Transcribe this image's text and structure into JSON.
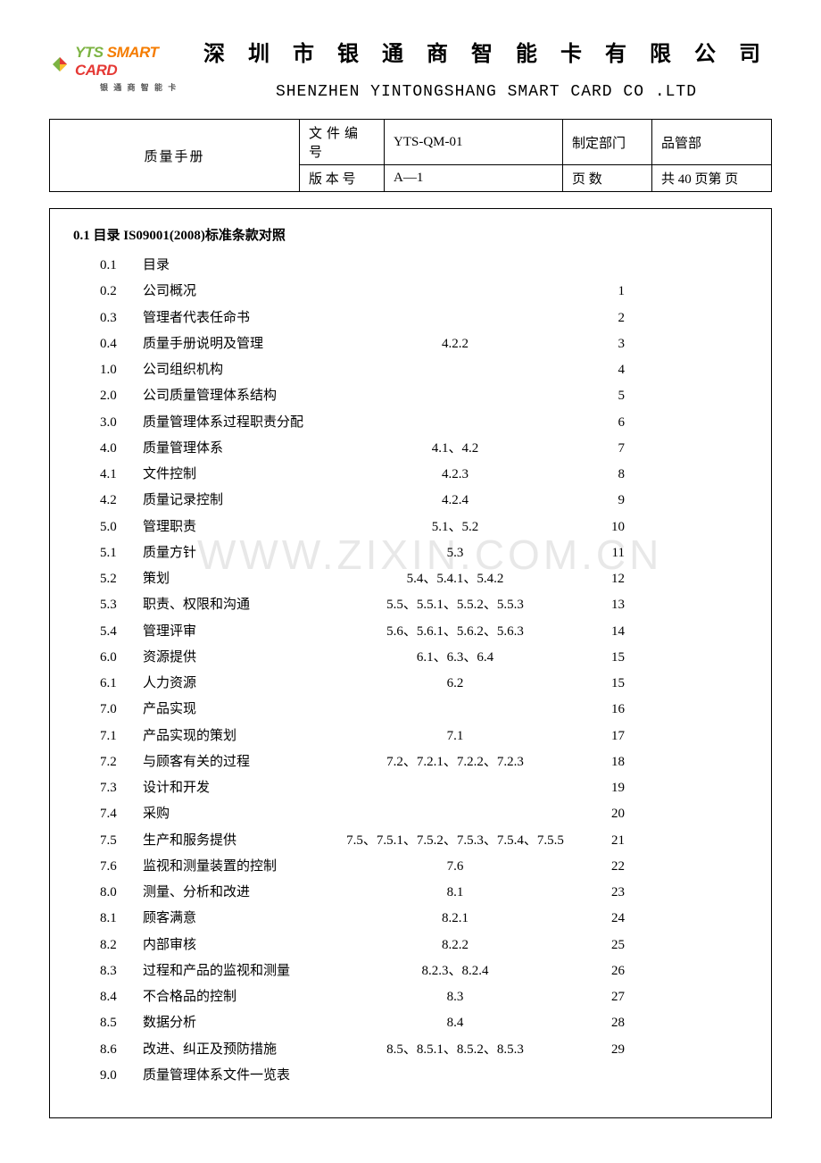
{
  "logo": {
    "brand_yts": "YTS",
    "brand_smart": " SMART",
    "brand_card": " CARD",
    "sub": "银 通 商 智 能 卡",
    "diamond_colors": [
      "#7cb342",
      "#e53935",
      "#fbc02d"
    ]
  },
  "header": {
    "title_cn": "深 圳 市 银 通 商 智 能 卡 有 限 公 司",
    "title_en": "SHENZHEN YINTONGSHANG SMART CARD CO .LTD"
  },
  "info": {
    "manual_title": "质量手册",
    "doc_no_label": "文件编号",
    "doc_no": "YTS-QM-01",
    "dept_label": "制定部门",
    "dept": "品管部",
    "version_label": "版 本 号",
    "version": "A—1",
    "page_label": "页    数",
    "page_count": "共 40 页第  页"
  },
  "section": {
    "heading": "0.1  目录 IS09001(2008)标准条款对照"
  },
  "watermark": "WWW.ZIXIN.COM.CN",
  "toc": [
    {
      "num": "0.1",
      "label": "目录",
      "ref": "",
      "page": ""
    },
    {
      "num": "0.2",
      "label": "公司概况",
      "ref": "",
      "page": "1"
    },
    {
      "num": "0.3",
      "label": "管理者代表任命书",
      "ref": "",
      "page": "2"
    },
    {
      "num": "0.4",
      "label": "质量手册说明及管理",
      "ref": "4.2.2",
      "page": "3"
    },
    {
      "num": "1.0",
      "label": "公司组织机构",
      "ref": "",
      "page": "4"
    },
    {
      "num": "2.0",
      "label": "公司质量管理体系结构",
      "ref": "",
      "page": "5"
    },
    {
      "num": "3.0",
      "label": "质量管理体系过程职责分配",
      "ref": "",
      "page": "6"
    },
    {
      "num": "4.0",
      "label": "质量管理体系",
      "ref": "4.1、4.2",
      "page": "7"
    },
    {
      "num": "4.1",
      "label": "文件控制",
      "ref": "4.2.3",
      "page": "8"
    },
    {
      "num": "4.2",
      "label": "质量记录控制",
      "ref": "4.2.4",
      "page": "9"
    },
    {
      "num": "5.0",
      "label": "管理职责",
      "ref": "5.1、5.2",
      "page": "10"
    },
    {
      "num": "5.1",
      "label": "质量方针",
      "ref": "5.3",
      "page": "11"
    },
    {
      "num": "5.2",
      "label": "策划",
      "ref": "5.4、5.4.1、5.4.2",
      "page": "12"
    },
    {
      "num": "5.3",
      "label": "职责、权限和沟通",
      "ref": "5.5、5.5.1、5.5.2、5.5.3",
      "page": "13"
    },
    {
      "num": "5.4",
      "label": "管理评审",
      "ref": "5.6、5.6.1、5.6.2、5.6.3",
      "page": "14"
    },
    {
      "num": "6.0",
      "label": "资源提供",
      "ref": "6.1、6.3、6.4",
      "page": "15"
    },
    {
      "num": "6.1",
      "label": "人力资源",
      "ref": "6.2",
      "page": "15"
    },
    {
      "num": "7.0",
      "label": "产品实现",
      "ref": "",
      "page": "16"
    },
    {
      "num": "7.1",
      "label": "产品实现的策划",
      "ref": "7.1",
      "page": "17"
    },
    {
      "num": "7.2",
      "label": "与顾客有关的过程",
      "ref": "7.2、7.2.1、7.2.2、7.2.3",
      "page": "18"
    },
    {
      "num": "7.3",
      "label": "设计和开发",
      "ref": "",
      "page": "19"
    },
    {
      "num": "7.4",
      "label": "采购",
      "ref": "",
      "page": "20"
    },
    {
      "num": "7.5",
      "label": "生产和服务提供",
      "ref": "7.5、7.5.1、7.5.2、7.5.3、7.5.4、7.5.5",
      "page": "21"
    },
    {
      "num": "7.6",
      "label": "监视和测量装置的控制",
      "ref": "7.6",
      "page": "22"
    },
    {
      "num": "8.0",
      "label": "测量、分析和改进",
      "ref": "8.1",
      "page": "23"
    },
    {
      "num": "8.1",
      "label": "顾客满意",
      "ref": "8.2.1",
      "page": "24"
    },
    {
      "num": "8.2",
      "label": "内部审核",
      "ref": "8.2.2",
      "page": "25"
    },
    {
      "num": "8.3",
      "label": "过程和产品的监视和测量",
      "ref": "8.2.3、8.2.4",
      "page": "26"
    },
    {
      "num": "8.4",
      "label": "不合格品的控制",
      "ref": "8.3",
      "page": "27"
    },
    {
      "num": "8.5",
      "label": "数据分析",
      "ref": "8.4",
      "page": "28"
    },
    {
      "num": "8.6",
      "label": "改进、纠正及预防措施",
      "ref": "8.5、8.5.1、8.5.2、8.5.3",
      "page": "29"
    },
    {
      "num": "9.0",
      "label": "质量管理体系文件一览表",
      "ref": "",
      "page": ""
    }
  ]
}
